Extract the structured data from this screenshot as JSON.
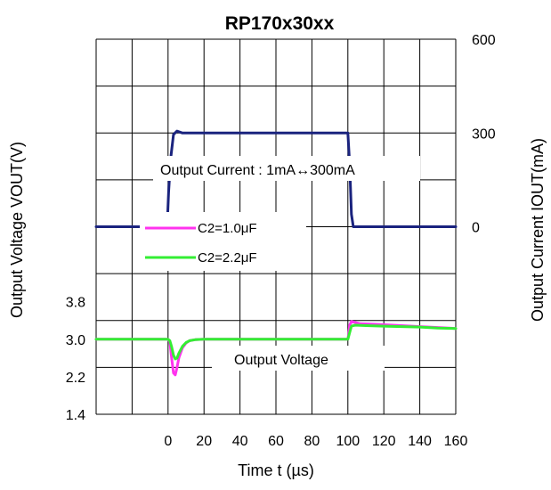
{
  "chart_data": {
    "type": "line",
    "title": "RP170x30xx",
    "xlabel": "Time t (µs)",
    "ylabel_left": "Output Voltage VOUT(V)",
    "ylabel_right": "Output Current IOUT(mA)",
    "x_range": [
      -40,
      160
    ],
    "x_ticks": [
      "0",
      "20",
      "40",
      "60",
      "80",
      "100",
      "120",
      "140",
      "160"
    ],
    "x_tick_values": [
      0,
      20,
      40,
      60,
      80,
      100,
      120,
      140,
      160
    ],
    "y_left_range": [
      1.4,
      9.4
    ],
    "y_left_ticks": [
      "1.4",
      "2.2",
      "3.0",
      "3.8"
    ],
    "y_left_tick_values": [
      1.4,
      2.2,
      3.0,
      3.8
    ],
    "y_right_range": [
      -600,
      600
    ],
    "y_right_ticks": [
      "0",
      "300",
      "600"
    ],
    "y_right_tick_values": [
      0,
      300,
      600
    ],
    "grid": true,
    "annotations": {
      "current": "Output Current : 1mA↔300mA",
      "voltage": "Output Voltage"
    },
    "legend": {
      "placement": "upper-left-center",
      "entries": [
        "C2=1.0μF",
        "C2=2.2μF"
      ]
    },
    "series": [
      {
        "name": "Output Current",
        "axis": "right",
        "color": "#1a237e",
        "x": [
          -40,
          -0.5,
          0.3,
          1.5,
          3,
          5,
          8,
          100,
          101,
          102,
          103,
          160
        ],
        "y": [
          0,
          0,
          110,
          220,
          295,
          306,
          300,
          300,
          200,
          40,
          0,
          0
        ]
      },
      {
        "name": "C2=1.0μF",
        "axis": "left",
        "color": "#ff33ee",
        "x": [
          -40,
          0,
          1,
          2,
          3,
          4,
          5,
          6,
          8,
          10,
          12,
          15,
          20,
          100,
          100.5,
          101,
          102,
          104,
          107,
          115,
          125,
          140,
          150,
          160
        ],
        "y": [
          3.0,
          3.0,
          2.95,
          2.6,
          2.28,
          2.24,
          2.4,
          2.6,
          2.82,
          2.92,
          2.97,
          2.99,
          3.0,
          3.0,
          3.12,
          3.3,
          3.38,
          3.36,
          3.33,
          3.32,
          3.3,
          3.27,
          3.25,
          3.23
        ]
      },
      {
        "name": "C2=2.2μF",
        "axis": "left",
        "color": "#33ee33",
        "x": [
          -40,
          0,
          1,
          2,
          3,
          4,
          5,
          6,
          8,
          10,
          12,
          15,
          20,
          100,
          101,
          102,
          104,
          110,
          120,
          140,
          150,
          160
        ],
        "y": [
          3.0,
          3.0,
          2.97,
          2.84,
          2.66,
          2.58,
          2.6,
          2.7,
          2.85,
          2.93,
          2.97,
          2.99,
          3.0,
          3.0,
          3.14,
          3.28,
          3.3,
          3.29,
          3.28,
          3.26,
          3.24,
          3.23
        ]
      }
    ]
  },
  "colors": {
    "grid": "#000000",
    "current": "#1a237e",
    "c1": "#ff33ee",
    "c2": "#33ee33"
  }
}
